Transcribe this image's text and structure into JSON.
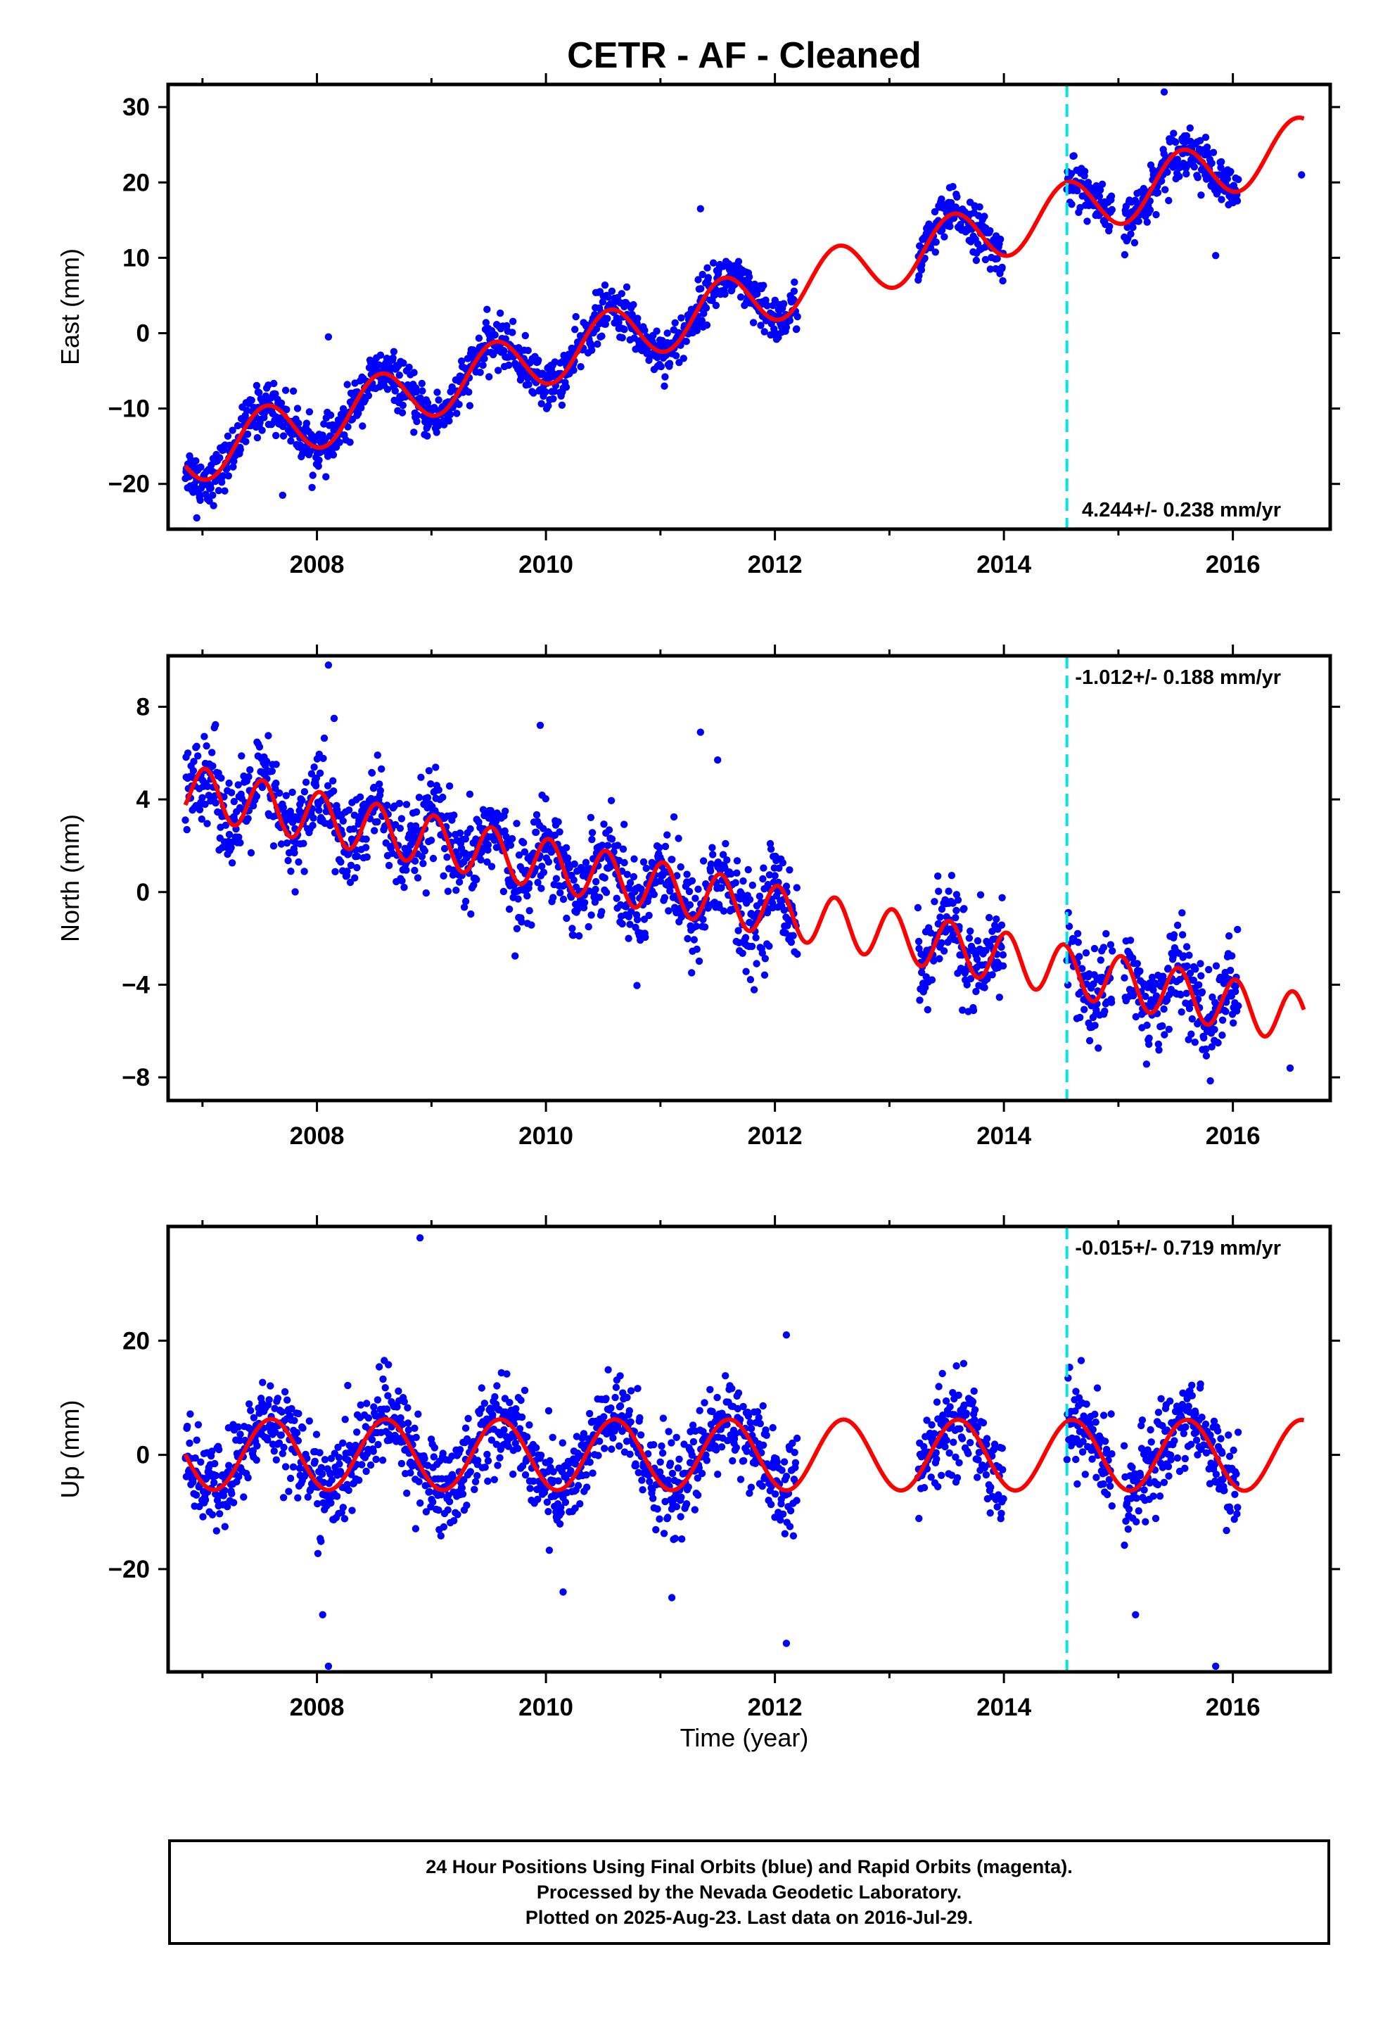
{
  "title": "CETR  - AF - Cleaned",
  "xlabel": "Time (year)",
  "xlim": [
    2006.7,
    2016.85
  ],
  "x_ticks": [
    2008,
    2010,
    2012,
    2014,
    2016
  ],
  "offset_line_year": 2014.55,
  "colors": {
    "data": "#0000ff",
    "model": "#ff0000",
    "offset": "#00e5e5"
  },
  "footer": {
    "line1": "24 Hour Positions Using Final Orbits (blue) and Rapid Orbits (magenta).",
    "line2": "Processed by the Nevada Geodetic Laboratory.",
    "line3": "Plotted on 2025-Aug-23. Last data on 2016-Jul-29."
  },
  "chart_data": [
    {
      "type": "scatter",
      "component": "east",
      "ylabel": "East (mm)",
      "ylim": [
        -26,
        33
      ],
      "y_ticks": [
        -20,
        -10,
        0,
        10,
        20,
        30
      ],
      "rate_label": "4.244+/- 0.238 mm/yr",
      "rate_position": "bottom-right",
      "model": {
        "rate": 4.244,
        "ref": 2011.5,
        "intercept": 3.3,
        "amp": 3.8,
        "phase": 2006.3
      },
      "data_segments": [
        [
          2006.85,
          2012.2
        ],
        [
          2013.25,
          2014.0
        ],
        [
          2014.55,
          2014.95
        ],
        [
          2015.05,
          2016.05
        ]
      ],
      "scatter_sd": 1.6,
      "outliers": [
        [
          2006.95,
          -24.5
        ],
        [
          2007.7,
          -21.5
        ],
        [
          2008.1,
          -0.5
        ],
        [
          2011.35,
          16.5
        ],
        [
          2015.4,
          32
        ],
        [
          2015.85,
          10.3
        ],
        [
          2016.6,
          21
        ]
      ]
    },
    {
      "type": "scatter",
      "component": "north",
      "ylabel": "North (mm)",
      "ylim": [
        -9,
        10.2
      ],
      "y_ticks": [
        -8,
        -4,
        0,
        4,
        8
      ],
      "rate_label": "-1.012+/- 0.188 mm/yr",
      "rate_position": "top-right",
      "model": {
        "rate": -1.012,
        "ref": 2011.5,
        "intercept": -0.3,
        "amp": 1.1,
        "period": 0.5,
        "phase": 2006.9
      },
      "data_segments": [
        [
          2006.85,
          2012.2
        ],
        [
          2013.25,
          2014.0
        ],
        [
          2014.55,
          2014.95
        ],
        [
          2015.05,
          2016.05
        ]
      ],
      "scatter_sd": 1.0,
      "outliers": [
        [
          2008.1,
          9.8
        ],
        [
          2008.15,
          7.5
        ],
        [
          2009.95,
          7.2
        ],
        [
          2011.35,
          6.9
        ],
        [
          2011.5,
          5.7
        ],
        [
          2016.5,
          -7.6
        ]
      ]
    },
    {
      "type": "scatter",
      "component": "up",
      "ylabel": "Up (mm)",
      "ylim": [
        -38,
        40
      ],
      "y_ticks": [
        -20,
        0,
        20
      ],
      "rate_label": "-0.015+/- 0.719 mm/yr",
      "rate_position": "top-right",
      "model": {
        "rate": -0.015,
        "ref": 2011.5,
        "intercept": 0,
        "amp": 6.2,
        "phase": 2007.35
      },
      "data_segments": [
        [
          2006.85,
          2012.2
        ],
        [
          2013.25,
          2014.0
        ],
        [
          2014.55,
          2014.95
        ],
        [
          2015.05,
          2016.05
        ]
      ],
      "scatter_sd": 4.0,
      "outliers": [
        [
          2008.9,
          38
        ],
        [
          2008.05,
          -28
        ],
        [
          2008.1,
          -37
        ],
        [
          2010.15,
          -24
        ],
        [
          2011.1,
          -25
        ],
        [
          2012.1,
          -33
        ],
        [
          2015.15,
          -28
        ],
        [
          2015.85,
          -37
        ],
        [
          2012.1,
          21
        ]
      ]
    }
  ]
}
